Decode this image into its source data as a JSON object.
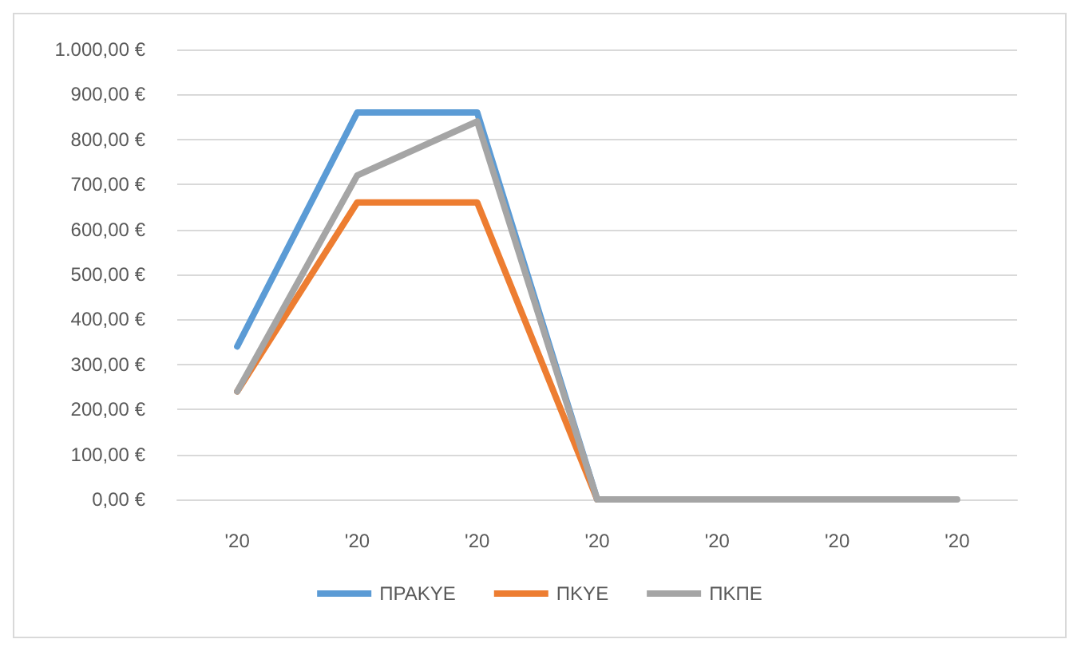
{
  "chart_data": {
    "type": "line",
    "categories": [
      "'20",
      "'20",
      "'20",
      "'20",
      "'20",
      "'20",
      "'20"
    ],
    "series": [
      {
        "name": "ΠΡΑΚΥΕ",
        "color": "#5b9bd5",
        "values": [
          340,
          860,
          860,
          0,
          0,
          null,
          null
        ]
      },
      {
        "name": "ΠΚΥΕ",
        "color": "#ed7d31",
        "values": [
          240,
          660,
          660,
          0,
          0,
          null,
          null
        ]
      },
      {
        "name": "ΠΚΠΕ",
        "color": "#a5a5a5",
        "values": [
          240,
          720,
          840,
          0,
          0,
          0,
          0
        ]
      }
    ],
    "ylim": [
      0,
      1000
    ],
    "yticks": [
      {
        "value": 0,
        "label": "0,00 €"
      },
      {
        "value": 100,
        "label": "100,00 €"
      },
      {
        "value": 200,
        "label": "200,00 €"
      },
      {
        "value": 300,
        "label": "300,00 €"
      },
      {
        "value": 400,
        "label": "400,00 €"
      },
      {
        "value": 500,
        "label": "500,00 €"
      },
      {
        "value": 600,
        "label": "600,00 €"
      },
      {
        "value": 700,
        "label": "700,00 €"
      },
      {
        "value": 800,
        "label": "800,00 €"
      },
      {
        "value": 900,
        "label": "900,00 €"
      },
      {
        "value": 1000,
        "label": "1.000,00 €"
      }
    ],
    "grid": "y",
    "legend": "bottom",
    "marker": "none"
  }
}
